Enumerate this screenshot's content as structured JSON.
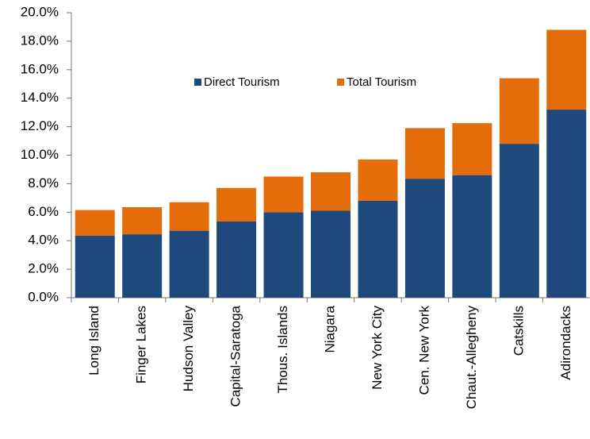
{
  "chart_data": {
    "type": "stacked-bar",
    "categories": [
      "Long Island",
      "Finger Lakes",
      "Hudson Valley",
      "Capital-Saratoga",
      "Thous. Islands",
      "Niagara",
      "New York City",
      "Cen. New York",
      "Chaut.-Allegheny",
      "Catskills",
      "Adirondacks"
    ],
    "series": [
      {
        "name": "Direct Tourism",
        "color": "#1f497d",
        "values": [
          4.35,
          4.45,
          4.7,
          5.35,
          6.0,
          6.1,
          6.8,
          8.35,
          8.6,
          10.8,
          13.2
        ]
      },
      {
        "name": "Total Tourism",
        "color": "#e46c0a",
        "values": [
          1.8,
          1.9,
          2.0,
          2.35,
          2.5,
          2.7,
          2.9,
          3.55,
          3.65,
          4.6,
          5.6
        ]
      }
    ],
    "ylim": [
      0,
      20
    ],
    "yticks": [
      {
        "value": 0,
        "label": "0.0%"
      },
      {
        "value": 2,
        "label": "2.0%"
      },
      {
        "value": 4,
        "label": "4.0%"
      },
      {
        "value": 6,
        "label": "6.0%"
      },
      {
        "value": 8,
        "label": "8.0%"
      },
      {
        "value": 10,
        "label": "10.0%"
      },
      {
        "value": 12,
        "label": "12.0%"
      },
      {
        "value": 14,
        "label": "14.0%"
      },
      {
        "value": 16,
        "label": "16.0%"
      },
      {
        "value": 18,
        "label": "18.0%"
      },
      {
        "value": 20,
        "label": "20.0%"
      }
    ],
    "grid": false
  }
}
